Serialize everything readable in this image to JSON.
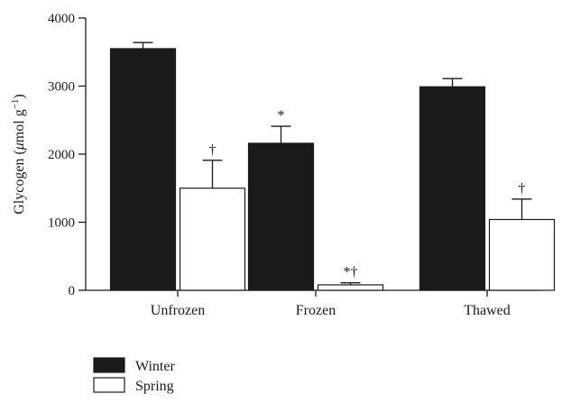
{
  "chart_data": {
    "type": "bar",
    "title": "",
    "xlabel": "",
    "ylabel": "Glycogen (μmol g⁻¹)",
    "ylabel_parts": {
      "base": "Glycogen (",
      "mu": "μ",
      "unit": "mol g",
      "exp": "−1",
      "close": ")"
    },
    "ylim": [
      0,
      4000
    ],
    "yticks": [
      0,
      1000,
      2000,
      3000,
      4000
    ],
    "categories": [
      "Unfrozen",
      "Frozen",
      "Thawed"
    ],
    "series": [
      {
        "name": "Winter",
        "color": "#1a1a1a",
        "values": [
          3550,
          2160,
          2990
        ],
        "errors": [
          90,
          250,
          120
        ],
        "annotations": [
          "",
          "*",
          ""
        ]
      },
      {
        "name": "Spring",
        "color": "#ffffff",
        "values": [
          1500,
          80,
          1040
        ],
        "errors": [
          410,
          30,
          300
        ],
        "annotations": [
          "†",
          "*†",
          "†"
        ]
      }
    ],
    "grid": false,
    "legend_position": "bottom-left"
  }
}
